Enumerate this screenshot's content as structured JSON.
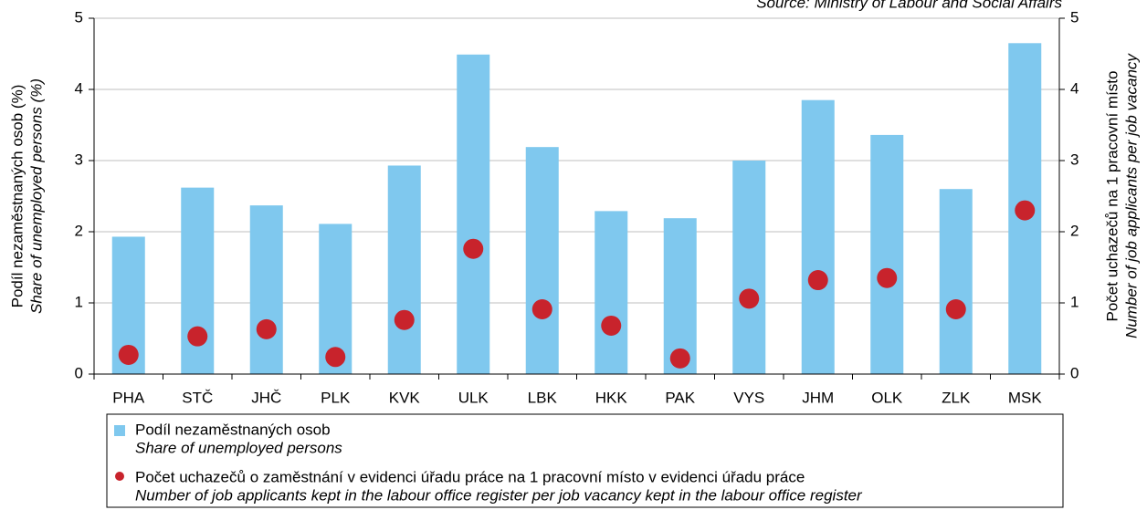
{
  "chart_data": {
    "type": "bar_dot",
    "source": "Source: Ministry of Labour and Social Affairs",
    "ylabel": [
      "Podíl nezaměstnaných osob (%)",
      "Share of unemployed persons (%)"
    ],
    "y2label": [
      "Počet uchazečů na 1 pracovní místo",
      "Number of job applicants per job vacancy"
    ],
    "categories": [
      "PHA",
      "STČ",
      "JHČ",
      "PLK",
      "KVK",
      "ULK",
      "LBK",
      "HKK",
      "PAK",
      "VYS",
      "JHM",
      "OLK",
      "ZLK",
      "MSK"
    ],
    "series": [
      {
        "name": "Podíl nezaměstnaných osob",
        "name_en": "Share of unemployed persons",
        "color": "#7fc8ee",
        "values": [
          1.93,
          2.62,
          2.37,
          2.11,
          2.93,
          4.49,
          3.19,
          2.29,
          2.19,
          3.0,
          3.85,
          3.36,
          2.6,
          4.65
        ]
      },
      {
        "name": "Počet uchazečů o zaměstnání v evidenci úřadu práce na 1 pracovní místo v evidenci úřadu práce",
        "name_en": "Number of job applicants kept in the labour office register per job vacancy kept in the labour office register",
        "color": "#c8232c",
        "axis": "y2",
        "values": [
          0.27,
          0.53,
          0.63,
          0.24,
          0.76,
          1.76,
          0.91,
          0.68,
          0.22,
          1.06,
          1.32,
          1.35,
          0.91,
          2.3
        ]
      }
    ],
    "ylim": [
      0,
      5
    ],
    "yticks": [
      0,
      1,
      2,
      3,
      4,
      5
    ],
    "y2lim": [
      0,
      5
    ],
    "y2ticks": [
      0,
      1,
      2,
      3,
      4,
      5
    ],
    "grid": true
  }
}
